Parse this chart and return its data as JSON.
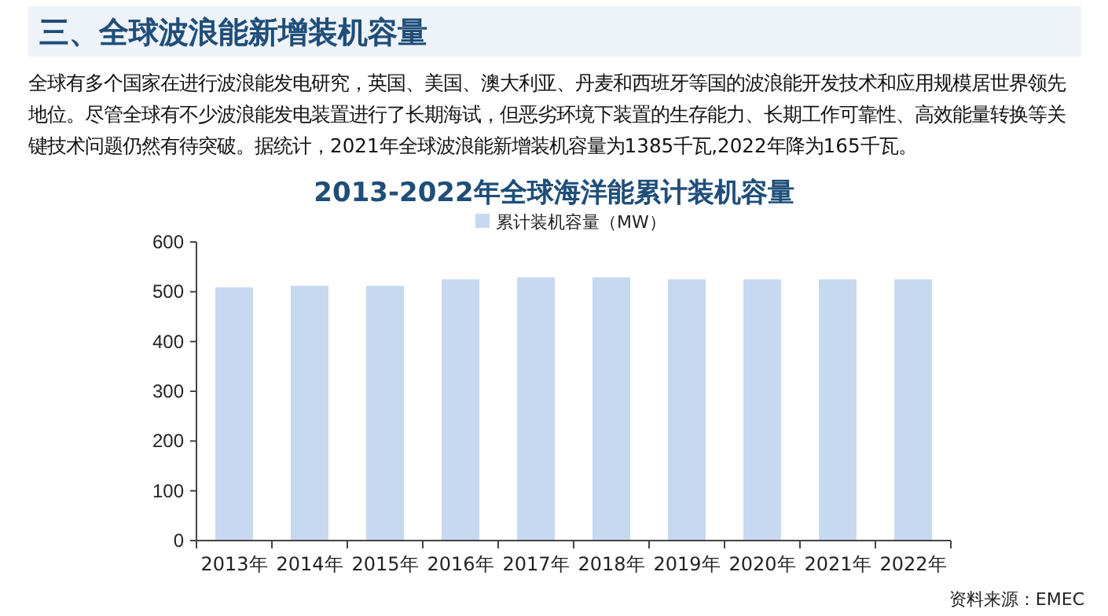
{
  "chart_data": {
    "type": "bar",
    "title": "2013-2022年全球海洋能累计装机容量",
    "annotations": [
      "三、全球波浪能新增装机容量",
      "全球有多个国家在进行波浪能发电研究，英国、美国、澳大利亚、丹麦和西班牙等国的波浪能开发技术和应用规模居世界领先地位。尽管全球有不少波浪能发电装置进行了长期海试，但恶劣环境下装置的生存能力、长期工作可靠性、高效能量转换等关键技术问题仍然有待突破。据统计，2021年全球波浪能新增装机容量为1385千瓦,2022年降为165千瓦。",
      "资料来源：EMEC"
    ],
    "categories": [
      "2013年",
      "2014年",
      "2015年",
      "2016年",
      "2017年",
      "2018年",
      "2019年",
      "2020年",
      "2021年",
      "2022年"
    ],
    "series": [
      {
        "name": "累计装机容量（MW）",
        "color": "#c6d9f0",
        "values": [
          509,
          512,
          512,
          525,
          529,
          529,
          525,
          525,
          525,
          525
        ]
      }
    ],
    "ylim": [
      0,
      600
    ],
    "yticks": [
      0,
      100,
      200,
      300,
      400,
      500,
      600
    ],
    "grid": false,
    "legend": "top"
  }
}
